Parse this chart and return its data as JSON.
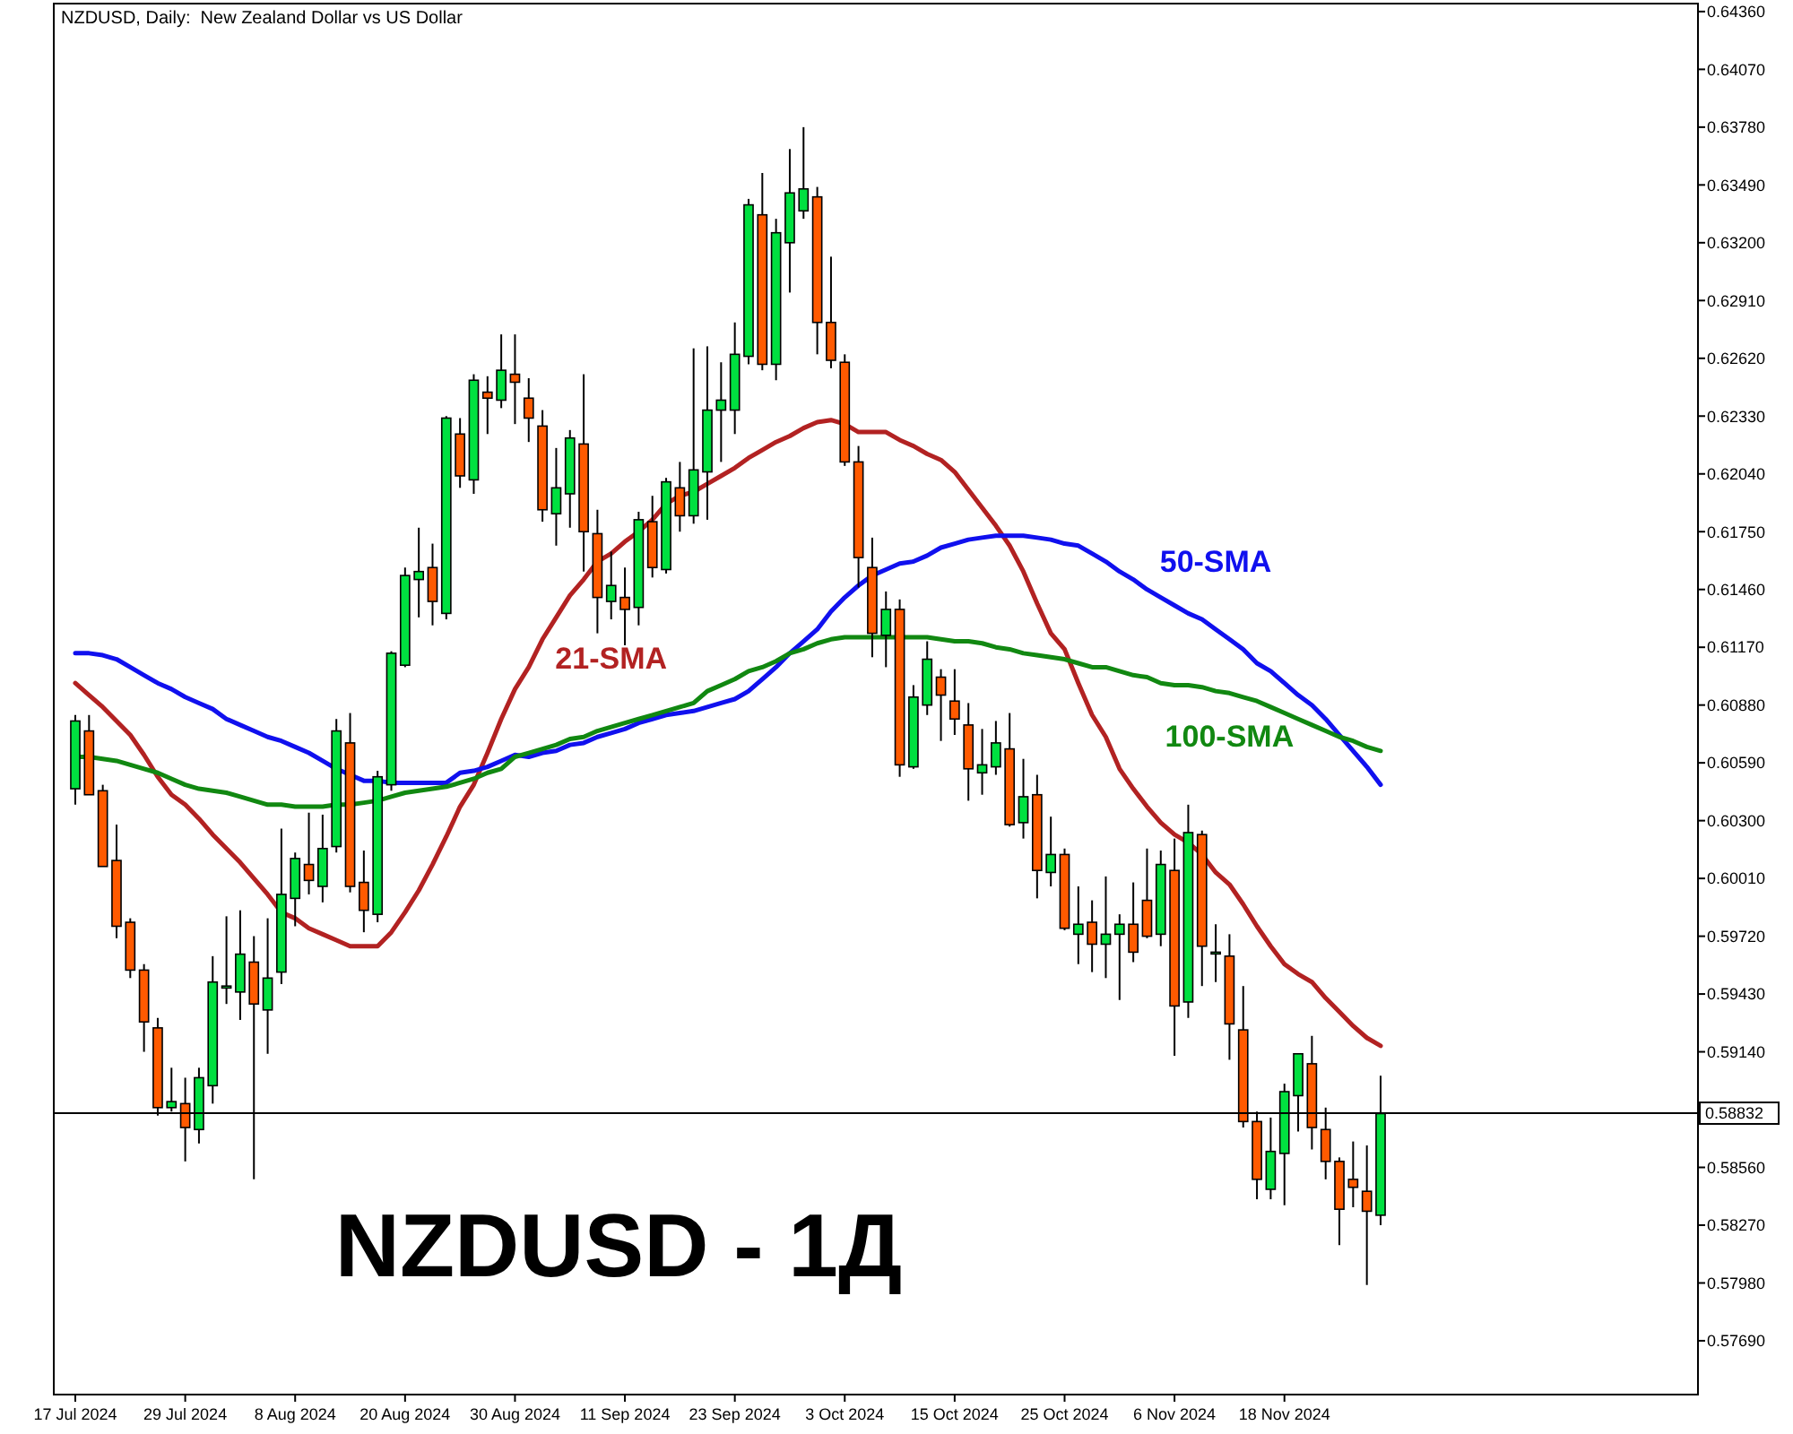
{
  "chart_data": {
    "type": "candlestick",
    "title": "NZDUSD, Daily:  New Zealand Dollar vs US Dollar",
    "annotations": [
      "NZDUSD - 1Д"
    ],
    "categories": [
      "17 Jul 2024",
      null,
      null,
      null,
      null,
      null,
      null,
      null,
      "29 Jul 2024",
      null,
      null,
      null,
      null,
      null,
      null,
      null,
      "8 Aug 2024",
      null,
      null,
      null,
      null,
      null,
      null,
      null,
      "20 Aug 2024",
      null,
      null,
      null,
      null,
      null,
      null,
      null,
      "30 Aug 2024",
      null,
      null,
      null,
      null,
      null,
      null,
      null,
      "11 Sep 2024",
      null,
      null,
      null,
      null,
      null,
      null,
      null,
      "23 Sep 2024",
      null,
      null,
      null,
      null,
      null,
      null,
      null,
      "3 Oct 2024",
      null,
      null,
      null,
      null,
      null,
      null,
      null,
      "15 Oct 2024",
      null,
      null,
      null,
      null,
      null,
      null,
      null,
      "25 Oct 2024",
      null,
      null,
      null,
      null,
      null,
      null,
      null,
      "6 Nov 2024",
      null,
      null,
      null,
      null,
      null,
      null,
      null,
      "18 Nov 2024",
      null,
      null,
      null,
      null,
      null,
      null,
      null
    ],
    "ohlc": [
      [
        0.6046,
        0.6083,
        0.6038,
        0.608
      ],
      [
        0.6075,
        0.6083,
        0.6043,
        0.6043
      ],
      [
        0.6045,
        0.6048,
        0.6007,
        0.6007
      ],
      [
        0.601,
        0.6028,
        0.5971,
        0.5977
      ],
      [
        0.5979,
        0.5981,
        0.5951,
        0.5955
      ],
      [
        0.5955,
        0.5958,
        0.5914,
        0.5929
      ],
      [
        0.5926,
        0.5931,
        0.5882,
        0.5886
      ],
      [
        0.5886,
        0.5906,
        0.5884,
        0.5889
      ],
      [
        0.5888,
        0.5901,
        0.5859,
        0.5876
      ],
      [
        0.5875,
        0.5906,
        0.5868,
        0.5901
      ],
      [
        0.5897,
        0.5962,
        0.5888,
        0.5949
      ],
      [
        0.5946,
        0.5982,
        0.5938,
        0.5947
      ],
      [
        0.5944,
        0.5985,
        0.593,
        0.5963
      ],
      [
        0.5959,
        0.5972,
        0.585,
        0.5938
      ],
      [
        0.5935,
        0.5981,
        0.5913,
        0.5951
      ],
      [
        0.5954,
        0.6026,
        0.5948,
        0.5993
      ],
      [
        0.5991,
        0.6014,
        0.5977,
        0.6011
      ],
      [
        0.6008,
        0.6034,
        0.5993,
        0.6
      ],
      [
        0.5997,
        0.6033,
        0.5989,
        0.6016
      ],
      [
        0.6017,
        0.6081,
        0.6014,
        0.6075
      ],
      [
        0.6069,
        0.6084,
        0.5994,
        0.5997
      ],
      [
        0.5999,
        0.6015,
        0.5974,
        0.5985
      ],
      [
        0.5983,
        0.6055,
        0.5979,
        0.6052
      ],
      [
        0.6048,
        0.6115,
        0.6045,
        0.6114
      ],
      [
        0.6108,
        0.6157,
        0.6107,
        0.6153
      ],
      [
        0.6151,
        0.6177,
        0.6132,
        0.6155
      ],
      [
        0.6157,
        0.6169,
        0.6128,
        0.614
      ],
      [
        0.6134,
        0.6233,
        0.6131,
        0.6232
      ],
      [
        0.6224,
        0.6232,
        0.6197,
        0.6203
      ],
      [
        0.6201,
        0.6254,
        0.6194,
        0.6251
      ],
      [
        0.6245,
        0.6253,
        0.6224,
        0.6242
      ],
      [
        0.6241,
        0.6274,
        0.6237,
        0.6256
      ],
      [
        0.6254,
        0.6274,
        0.6229,
        0.625
      ],
      [
        0.6242,
        0.6252,
        0.622,
        0.6232
      ],
      [
        0.6228,
        0.6236,
        0.618,
        0.6186
      ],
      [
        0.6184,
        0.6217,
        0.6168,
        0.6197
      ],
      [
        0.6194,
        0.6226,
        0.6177,
        0.6222
      ],
      [
        0.6219,
        0.6254,
        0.6155,
        0.6175
      ],
      [
        0.6174,
        0.6186,
        0.6124,
        0.6142
      ],
      [
        0.614,
        0.6165,
        0.6131,
        0.6148
      ],
      [
        0.6142,
        0.6157,
        0.6118,
        0.6136
      ],
      [
        0.6137,
        0.6185,
        0.6128,
        0.6181
      ],
      [
        0.618,
        0.6193,
        0.6152,
        0.6157
      ],
      [
        0.6156,
        0.6202,
        0.6154,
        0.62
      ],
      [
        0.6197,
        0.621,
        0.6175,
        0.6183
      ],
      [
        0.6183,
        0.6267,
        0.6179,
        0.6206
      ],
      [
        0.6205,
        0.6268,
        0.6181,
        0.6236
      ],
      [
        0.6236,
        0.626,
        0.621,
        0.6241
      ],
      [
        0.6236,
        0.628,
        0.6224,
        0.6264
      ],
      [
        0.6263,
        0.6342,
        0.6259,
        0.6339
      ],
      [
        0.6334,
        0.6355,
        0.6256,
        0.6259
      ],
      [
        0.6259,
        0.6332,
        0.6251,
        0.6325
      ],
      [
        0.632,
        0.6367,
        0.6295,
        0.6345
      ],
      [
        0.6336,
        0.6378,
        0.6332,
        0.6347
      ],
      [
        0.6343,
        0.6348,
        0.6264,
        0.628
      ],
      [
        0.628,
        0.6313,
        0.6257,
        0.6261
      ],
      [
        0.626,
        0.6264,
        0.6208,
        0.621
      ],
      [
        0.621,
        0.6218,
        0.6147,
        0.6162
      ],
      [
        0.6157,
        0.6172,
        0.6112,
        0.6124
      ],
      [
        0.6123,
        0.6145,
        0.6107,
        0.6136
      ],
      [
        0.6136,
        0.6141,
        0.6052,
        0.6058
      ],
      [
        0.6057,
        0.6098,
        0.6056,
        0.6092
      ],
      [
        0.6088,
        0.612,
        0.6083,
        0.6111
      ],
      [
        0.6102,
        0.6106,
        0.607,
        0.6093
      ],
      [
        0.609,
        0.6106,
        0.6073,
        0.6081
      ],
      [
        0.6078,
        0.6089,
        0.604,
        0.6056
      ],
      [
        0.6054,
        0.6076,
        0.6043,
        0.6058
      ],
      [
        0.6057,
        0.608,
        0.6053,
        0.6069
      ],
      [
        0.6066,
        0.6084,
        0.6027,
        0.6028
      ],
      [
        0.6029,
        0.6061,
        0.6021,
        0.6042
      ],
      [
        0.6043,
        0.6053,
        0.5991,
        0.6005
      ],
      [
        0.6004,
        0.6032,
        0.5997,
        0.6013
      ],
      [
        0.6013,
        0.6016,
        0.5975,
        0.5976
      ],
      [
        0.5973,
        0.5997,
        0.5958,
        0.5978
      ],
      [
        0.5979,
        0.599,
        0.5954,
        0.5968
      ],
      [
        0.5968,
        0.6002,
        0.5951,
        0.5973
      ],
      [
        0.5973,
        0.5983,
        0.594,
        0.5978
      ],
      [
        0.5978,
        0.5999,
        0.5959,
        0.5964
      ],
      [
        0.599,
        0.6016,
        0.5971,
        0.5972
      ],
      [
        0.5973,
        0.6015,
        0.5967,
        0.6008
      ],
      [
        0.6005,
        0.6021,
        0.5912,
        0.5937
      ],
      [
        0.5939,
        0.6038,
        0.5931,
        0.6024
      ],
      [
        0.6023,
        0.6025,
        0.5947,
        0.5967
      ],
      [
        0.5964,
        0.5978,
        0.5949,
        0.5964
      ],
      [
        0.5962,
        0.5973,
        0.591,
        0.5928
      ],
      [
        0.5925,
        0.5947,
        0.5876,
        0.5879
      ],
      [
        0.5879,
        0.5884,
        0.584,
        0.585
      ],
      [
        0.5845,
        0.5881,
        0.584,
        0.5864
      ],
      [
        0.5863,
        0.5898,
        0.5837,
        0.5894
      ],
      [
        0.5892,
        0.5913,
        0.5874,
        0.5913
      ],
      [
        0.5908,
        0.5922,
        0.5865,
        0.5876
      ],
      [
        0.5875,
        0.5886,
        0.585,
        0.5859
      ],
      [
        0.5859,
        0.5861,
        0.5817,
        0.5835
      ],
      [
        0.585,
        0.5869,
        0.5836,
        0.5846
      ],
      [
        0.5844,
        0.5867,
        0.5797,
        0.5834
      ],
      [
        0.5832,
        0.5902,
        0.5827,
        0.5883
      ]
    ],
    "colors": [
      "#00e040",
      "#ff5a00",
      "#ff5a00",
      "#ff5a00",
      "#ff5a00",
      "#ff5a00",
      "#ff5a00",
      "#00e040",
      "#ff5a00",
      "#00e040",
      "#00e040",
      "#00e040",
      "#00e040",
      "#ff5a00",
      "#00e040",
      "#00e040",
      "#00e040",
      "#ff5a00",
      "#00e040",
      "#00e040",
      "#ff5a00",
      "#ff5a00",
      "#00e040",
      "#00e040",
      "#00e040",
      "#00e040",
      "#ff5a00",
      "#00e040",
      "#ff5a00",
      "#00e040",
      "#ff5a00",
      "#00e040",
      "#ff5a00",
      "#ff5a00",
      "#ff5a00",
      "#00e040",
      "#00e040",
      "#ff5a00",
      "#ff5a00",
      "#00e040",
      "#ff5a00",
      "#00e040",
      "#ff5a00",
      "#00e040",
      "#ff5a00",
      "#00e040",
      "#00e040",
      "#00e040",
      "#00e040",
      "#00e040",
      "#ff5a00",
      "#00e040",
      "#00e040",
      "#00e040",
      "#ff5a00",
      "#ff5a00",
      "#ff5a00",
      "#ff5a00",
      "#ff5a00",
      "#00e040",
      "#ff5a00",
      "#00e040",
      "#00e040",
      "#ff5a00",
      "#ff5a00",
      "#ff5a00",
      "#00e040",
      "#00e040",
      "#ff5a00",
      "#00e040",
      "#ff5a00",
      "#00e040",
      "#ff5a00",
      "#00e040",
      "#ff5a00",
      "#00e040",
      "#00e040",
      "#ff5a00",
      "#ff5a00",
      "#00e040",
      "#ff5a00",
      "#00e040",
      "#ff5a00",
      "#00e040",
      "#ff5a00",
      "#ff5a00",
      "#ff5a00",
      "#00e040",
      "#00e040",
      "#00e040",
      "#ff5a00",
      "#ff5a00",
      "#ff5a00",
      "#ff5a00",
      "#ff5a00",
      "#00e040"
    ],
    "series": [
      {
        "type": "line",
        "name": "21-SMA",
        "color": "#b22222",
        "values": [
          0.6099,
          0.6093,
          0.6087,
          0.608,
          0.6073,
          0.6063,
          0.6052,
          0.6043,
          0.6038,
          0.6031,
          0.6023,
          0.6016,
          0.6009,
          0.6001,
          0.5993,
          0.5984,
          0.5981,
          0.5976,
          0.5973,
          0.597,
          0.5967,
          0.5967,
          0.5967,
          0.5974,
          0.5984,
          0.5995,
          0.6008,
          0.6022,
          0.6037,
          0.6048,
          0.6064,
          0.6081,
          0.6096,
          0.6107,
          0.6121,
          0.6132,
          0.6143,
          0.6151,
          0.616,
          0.6164,
          0.617,
          0.6175,
          0.6181,
          0.6189,
          0.6193,
          0.6195,
          0.6199,
          0.6203,
          0.6207,
          0.6212,
          0.6216,
          0.622,
          0.6223,
          0.6227,
          0.623,
          0.6231,
          0.6229,
          0.6225,
          0.6225,
          0.6225,
          0.6221,
          0.6218,
          0.6214,
          0.6211,
          0.6205,
          0.6196,
          0.6187,
          0.6178,
          0.6168,
          0.6155,
          0.6139,
          0.6124,
          0.6116,
          0.6099,
          0.6083,
          0.6072,
          0.6056,
          0.6046,
          0.6037,
          0.6029,
          0.6023,
          0.6019,
          0.6013,
          0.6004,
          0.5998,
          0.5988,
          0.5977,
          0.5967,
          0.5958,
          0.5953,
          0.5949,
          0.5941,
          0.5934,
          0.5927,
          0.5921,
          0.5917
        ]
      },
      {
        "type": "line",
        "name": "50-SMA",
        "color": "#1010ee",
        "values": [
          0.6114,
          0.6114,
          0.6113,
          0.6111,
          0.6107,
          0.6103,
          0.6099,
          0.6096,
          0.6092,
          0.6089,
          0.6086,
          0.6081,
          0.6078,
          0.6075,
          0.6072,
          0.607,
          0.6067,
          0.6064,
          0.606,
          0.6056,
          0.6053,
          0.605,
          0.605,
          0.6049,
          0.6049,
          0.6049,
          0.6049,
          0.6049,
          0.6054,
          0.6055,
          0.6057,
          0.606,
          0.6063,
          0.6062,
          0.6064,
          0.6065,
          0.6068,
          0.6069,
          0.6072,
          0.6074,
          0.6076,
          0.6079,
          0.6081,
          0.6083,
          0.6084,
          0.6085,
          0.6087,
          0.6089,
          0.6091,
          0.6095,
          0.6101,
          0.6107,
          0.6114,
          0.612,
          0.6126,
          0.6135,
          0.6142,
          0.6148,
          0.6153,
          0.6156,
          0.6159,
          0.616,
          0.6163,
          0.6167,
          0.6169,
          0.6171,
          0.6172,
          0.6173,
          0.6173,
          0.6173,
          0.6172,
          0.6171,
          0.6169,
          0.6168,
          0.6164,
          0.616,
          0.6155,
          0.6151,
          0.6146,
          0.6142,
          0.6138,
          0.6134,
          0.6131,
          0.6126,
          0.6121,
          0.6116,
          0.6109,
          0.6105,
          0.6099,
          0.6093,
          0.6088,
          0.6081,
          0.6073,
          0.6065,
          0.6057,
          0.6048
        ]
      },
      {
        "type": "line",
        "name": "100-SMA",
        "color": "#118811",
        "values": [
          0.6062,
          0.6062,
          0.6061,
          0.606,
          0.6058,
          0.6056,
          0.6054,
          0.6051,
          0.6048,
          0.6046,
          0.6045,
          0.6044,
          0.6042,
          0.604,
          0.6038,
          0.6038,
          0.6037,
          0.6037,
          0.6037,
          0.6038,
          0.6038,
          0.6039,
          0.604,
          0.6042,
          0.6044,
          0.6045,
          0.6046,
          0.6047,
          0.6049,
          0.6051,
          0.6054,
          0.6056,
          0.6062,
          0.6064,
          0.6066,
          0.6068,
          0.6071,
          0.6072,
          0.6075,
          0.6077,
          0.6079,
          0.6081,
          0.6083,
          0.6085,
          0.6087,
          0.6089,
          0.6095,
          0.6098,
          0.6101,
          0.6105,
          0.6107,
          0.611,
          0.6114,
          0.6116,
          0.6119,
          0.6121,
          0.6122,
          0.6122,
          0.6122,
          0.6122,
          0.6122,
          0.6122,
          0.6122,
          0.6121,
          0.612,
          0.612,
          0.6119,
          0.6117,
          0.6116,
          0.6114,
          0.6113,
          0.6112,
          0.6111,
          0.6109,
          0.6107,
          0.6107,
          0.6105,
          0.6103,
          0.6102,
          0.6099,
          0.6098,
          0.6098,
          0.6097,
          0.6095,
          0.6094,
          0.6092,
          0.609,
          0.6087,
          0.6084,
          0.6081,
          0.6078,
          0.6075,
          0.6072,
          0.607,
          0.6067,
          0.6065
        ]
      }
    ],
    "ylim": [
      0.5742,
      0.644
    ],
    "yticks": [
      {
        "value": 0.6436,
        "label": "0.64360"
      },
      {
        "value": 0.6407,
        "label": "0.64070"
      },
      {
        "value": 0.6378,
        "label": "0.63780"
      },
      {
        "value": 0.6349,
        "label": "0.63490"
      },
      {
        "value": 0.632,
        "label": "0.63200"
      },
      {
        "value": 0.6291,
        "label": "0.62910"
      },
      {
        "value": 0.6262,
        "label": "0.62620"
      },
      {
        "value": 0.6233,
        "label": "0.62330"
      },
      {
        "value": 0.6204,
        "label": "0.62040"
      },
      {
        "value": 0.6175,
        "label": "0.61750"
      },
      {
        "value": 0.6146,
        "label": "0.61460"
      },
      {
        "value": 0.6117,
        "label": "0.61170"
      },
      {
        "value": 0.6088,
        "label": "0.60880"
      },
      {
        "value": 0.6059,
        "label": "0.60590"
      },
      {
        "value": 0.603,
        "label": "0.60300"
      },
      {
        "value": 0.6001,
        "label": "0.60010"
      },
      {
        "value": 0.5972,
        "label": "0.59720"
      },
      {
        "value": 0.5943,
        "label": "0.59430"
      },
      {
        "value": 0.5914,
        "label": "0.59140"
      },
      {
        "value": 0.5885,
        "label": null
      },
      {
        "value": 0.5856,
        "label": "0.58560"
      },
      {
        "value": 0.5827,
        "label": "0.58270"
      },
      {
        "value": 0.5798,
        "label": "0.57980"
      },
      {
        "value": 0.5769,
        "label": "0.57690"
      }
    ],
    "ref_lines": [
      {
        "axis": "y",
        "value": 0.58832,
        "label": "0.58832",
        "color": "#000000"
      }
    ],
    "grid": false
  }
}
